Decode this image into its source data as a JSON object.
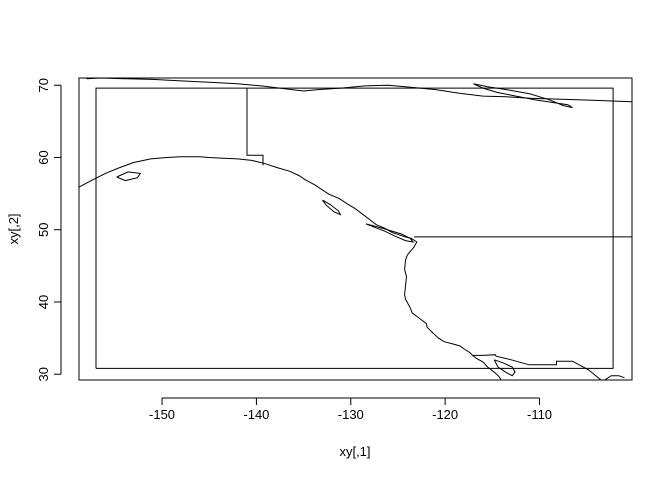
{
  "chart_data": {
    "type": "map-line",
    "title": "",
    "xlabel": "xy[,1]",
    "ylabel": "xy[,2]",
    "xlim": [
      -158.8,
      -100.2
    ],
    "ylim": [
      29.2,
      71.0
    ],
    "xticks": [
      -150,
      -140,
      -130,
      -120,
      -110
    ],
    "yticks": [
      30,
      40,
      50,
      60,
      70
    ],
    "xtick_labels": [
      "-150",
      "-140",
      "-130",
      "-120",
      "-110"
    ],
    "ytick_labels": [
      "30",
      "40",
      "50",
      "60",
      "70"
    ],
    "grid": false,
    "legend": "none",
    "series": [
      {
        "label": "bounding-rectangle",
        "x": [
          -157.0,
          -102.2,
          -102.2,
          -157.0,
          -157.0
        ],
        "y": [
          30.8,
          30.8,
          69.6,
          69.6,
          30.8
        ]
      },
      {
        "label": "alaska-canada-border",
        "x": [
          -141.0,
          -141.0,
          -139.3,
          -139.3
        ],
        "y": [
          69.6,
          60.3,
          60.3,
          58.9
        ]
      },
      {
        "label": "canada-us-border-49n",
        "x": [
          -123.3,
          -100.2
        ],
        "y": [
          49.0,
          49.0
        ]
      },
      {
        "label": "pacific-coastline",
        "x": [
          -158.8,
          -157.5,
          -156.0,
          -154.5,
          -153.0,
          -151.2,
          -149.5,
          -148.0,
          -147.0,
          -146.0,
          -145.0,
          -143.5,
          -142.0,
          -140.5,
          -139.2,
          -137.8,
          -136.5,
          -135.5,
          -134.8,
          -133.8,
          -133.0,
          -132.3,
          -131.2,
          -130.4,
          -129.5,
          -128.8,
          -128.0,
          -127.3,
          -126.4,
          -125.6,
          -124.9,
          -124.2,
          -123.6,
          -123.0,
          -123.3,
          -123.7,
          -124.0,
          -124.2,
          -124.3,
          -124.1,
          -124.2,
          -124.3,
          -124.2,
          -123.7,
          -123.5,
          -123.0,
          -122.5,
          -122.0,
          -121.9,
          -121.3,
          -120.7,
          -120.1,
          -119.2,
          -118.4,
          -118.0,
          -117.4,
          -117.1,
          -116.7,
          -116.0,
          -115.5,
          -114.8,
          -114.3,
          -114.1
        ],
        "y": [
          55.9,
          56.8,
          57.8,
          58.6,
          59.3,
          59.8,
          60.0,
          60.1,
          60.1,
          60.1,
          60.0,
          59.9,
          59.8,
          59.6,
          59.2,
          58.6,
          58.1,
          57.5,
          56.9,
          56.2,
          55.5,
          54.9,
          54.3,
          53.6,
          52.9,
          52.2,
          51.4,
          50.7,
          50.2,
          49.6,
          49.3,
          49.0,
          48.8,
          48.3,
          47.6,
          47.0,
          46.5,
          45.8,
          44.5,
          43.5,
          42.2,
          41.0,
          40.4,
          39.2,
          38.5,
          38.0,
          37.5,
          37.0,
          36.5,
          35.7,
          35.0,
          34.5,
          34.2,
          33.9,
          33.5,
          33.0,
          32.6,
          32.2,
          31.7,
          31.0,
          30.3,
          29.7,
          29.3
        ]
      },
      {
        "label": "mexico-us-border",
        "x": [
          -117.1,
          -116.0,
          -114.7,
          -114.6,
          -113.0,
          -111.1,
          -108.2,
          -108.2,
          -106.5,
          -104.8,
          -103.3,
          -102.4,
          -101.6,
          -101.0
        ],
        "y": [
          32.6,
          32.6,
          32.7,
          32.5,
          32.0,
          31.3,
          31.3,
          31.8,
          31.8,
          30.6,
          29.0,
          29.8,
          29.8,
          29.5
        ]
      },
      {
        "label": "gulf-of-california",
        "x": [
          -114.8,
          -114.4,
          -113.6,
          -112.9,
          -112.6,
          -112.9,
          -113.9,
          -114.8
        ],
        "y": [
          32.0,
          31.0,
          30.3,
          29.8,
          30.3,
          31.0,
          31.6,
          32.0
        ]
      },
      {
        "label": "arctic-coastline",
        "x": [
          -158.0,
          -156.5,
          -154.0,
          -151.0,
          -148.0,
          -145.0,
          -142.0,
          -139.5,
          -137.0,
          -135.0,
          -133.5,
          -131.0,
          -128.5,
          -126.0,
          -123.5,
          -121.0,
          -118.5,
          -116.0,
          -113.5,
          -111.0,
          -108.5,
          -106.0,
          -104.0,
          -102.0,
          -100.2
        ],
        "y": [
          70.9,
          71.0,
          70.9,
          70.8,
          70.6,
          70.4,
          70.2,
          69.9,
          69.5,
          69.2,
          69.4,
          69.6,
          69.9,
          70.0,
          69.7,
          69.4,
          68.9,
          68.5,
          68.4,
          68.2,
          68.1,
          68.0,
          67.9,
          67.8,
          67.7
        ]
      },
      {
        "label": "arctic-islands",
        "x": [
          -117.0,
          -115.5,
          -113.5,
          -111.0,
          -109.0,
          -107.5,
          -106.5,
          -107.0,
          -108.5,
          -110.5,
          -112.5,
          -114.5,
          -116.0,
          -117.0
        ],
        "y": [
          70.2,
          69.8,
          69.4,
          68.8,
          68.0,
          67.2,
          66.9,
          67.3,
          67.6,
          68.0,
          68.5,
          69.0,
          69.6,
          70.2
        ]
      },
      {
        "label": "vancouver-island",
        "x": [
          -128.4,
          -127.6,
          -126.4,
          -125.3,
          -124.2,
          -123.4,
          -123.7,
          -124.6,
          -125.9,
          -127.2,
          -128.4
        ],
        "y": [
          50.8,
          50.4,
          49.8,
          49.1,
          48.5,
          48.3,
          48.8,
          49.4,
          49.9,
          50.4,
          50.8
        ]
      },
      {
        "label": "haida-gwaii",
        "x": [
          -133.0,
          -132.2,
          -131.3,
          -131.1,
          -131.8,
          -132.6,
          -133.0
        ],
        "y": [
          54.1,
          53.5,
          52.6,
          52.1,
          52.5,
          53.4,
          54.1
        ]
      },
      {
        "label": "kodiak-island",
        "x": [
          -154.8,
          -153.6,
          -152.3,
          -152.6,
          -153.9,
          -154.8
        ],
        "y": [
          57.3,
          58.0,
          57.8,
          57.2,
          56.8,
          57.3
        ]
      }
    ]
  }
}
